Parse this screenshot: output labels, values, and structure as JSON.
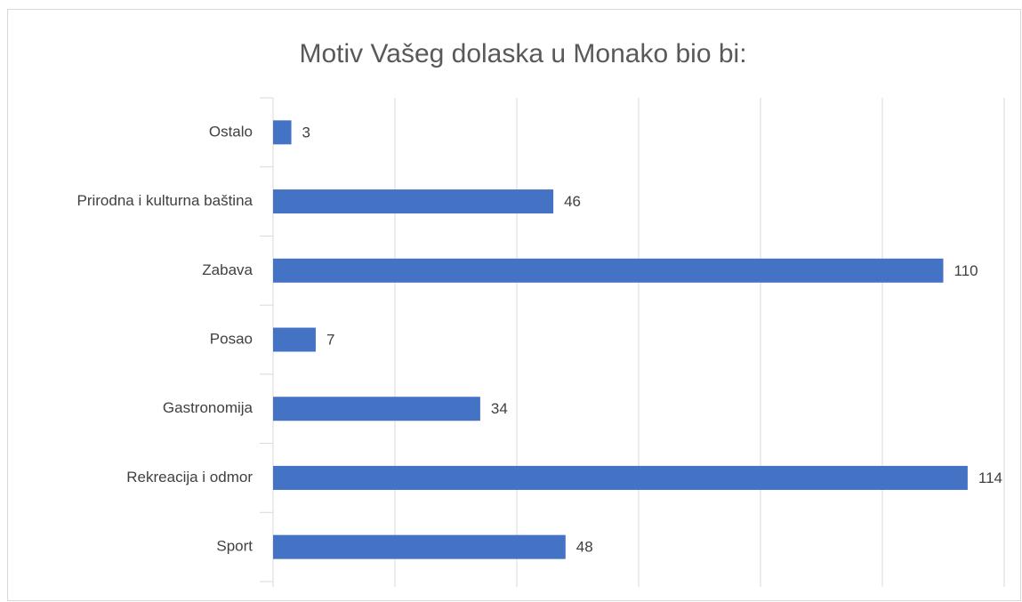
{
  "chart_data": {
    "type": "bar",
    "orientation": "horizontal",
    "title": "Motiv Vašeg dolaska u Monako bio bi:",
    "categories": [
      "Ostalo",
      "Prirodna i kulturna baština",
      "Zabava",
      "Posao",
      "Gastronomija",
      "Rekreacija i odmor",
      "Sport"
    ],
    "values": [
      3,
      46,
      110,
      7,
      34,
      114,
      48
    ],
    "color": "#4472c4",
    "xlim": [
      0,
      120
    ],
    "xticks": [
      0,
      20,
      40,
      60,
      80,
      100,
      120
    ],
    "grid": true
  }
}
